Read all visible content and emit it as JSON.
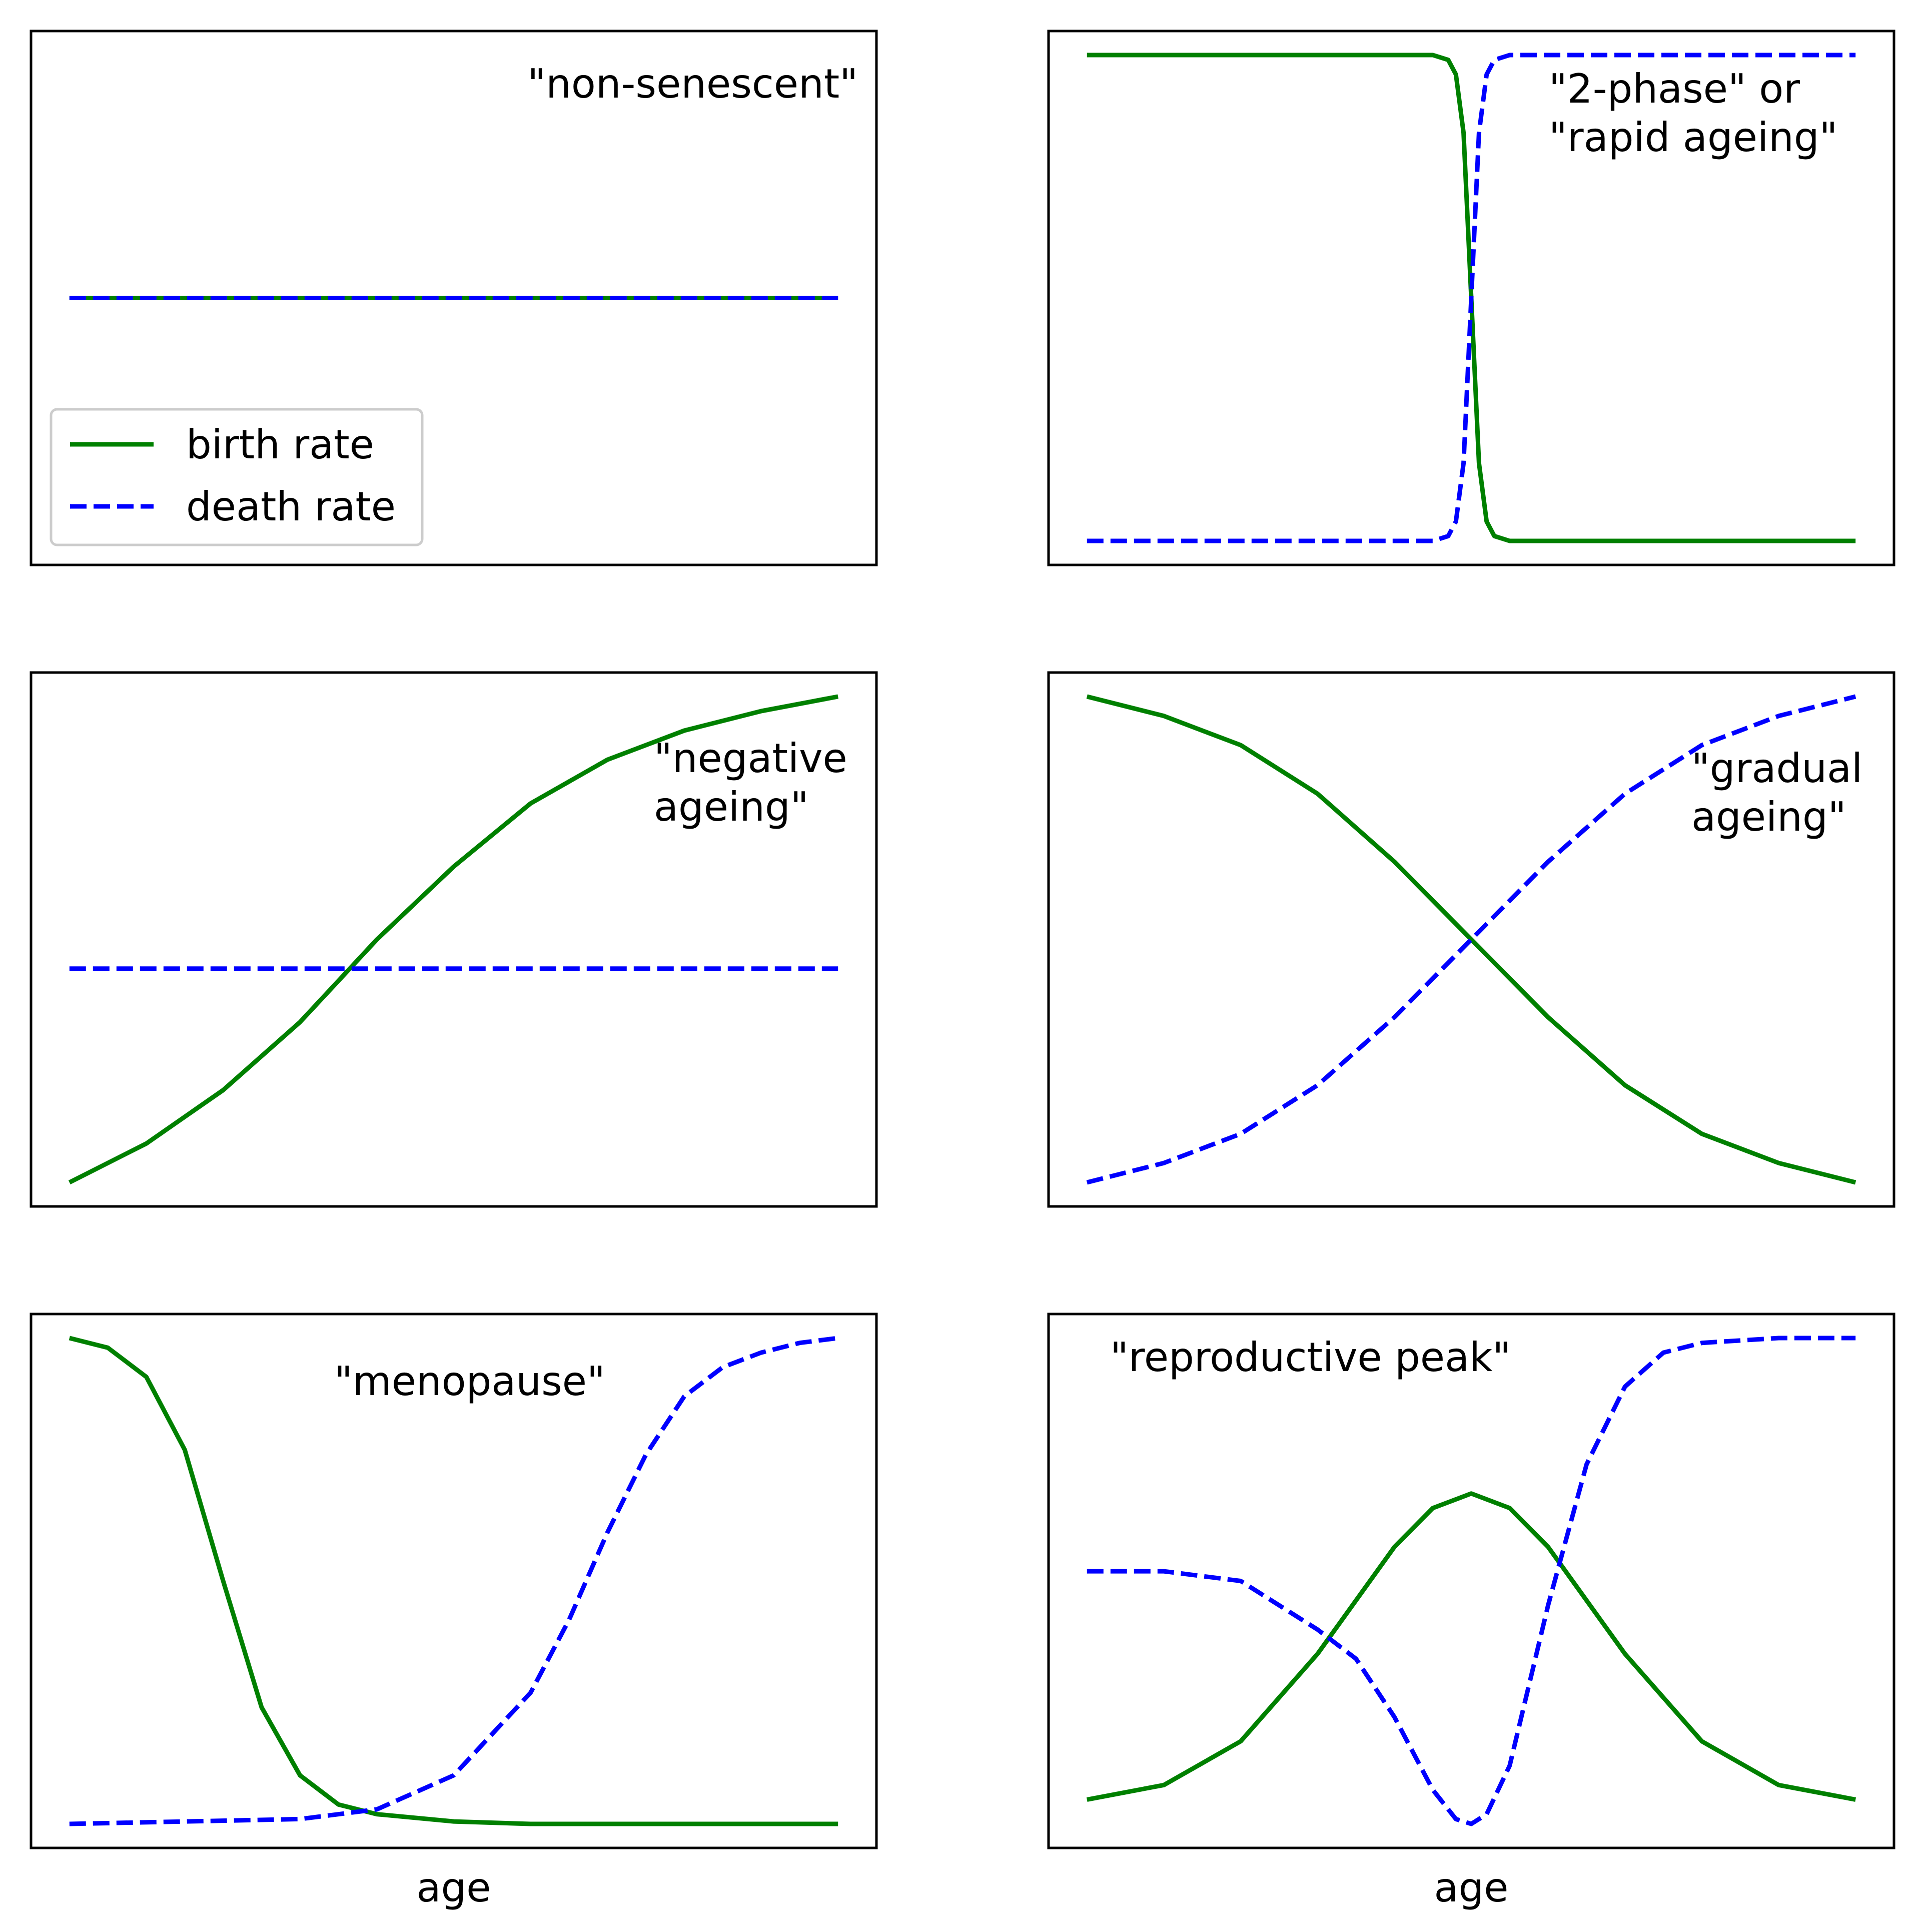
{
  "colors": {
    "birth": "#008000",
    "death": "#0000ff",
    "frame": "#000000",
    "legend_border": "#cccccc"
  },
  "legend": {
    "entries": [
      {
        "label": "birth rate",
        "series": "birth",
        "style": "solid"
      },
      {
        "label": "death rate",
        "series": "death",
        "style": "dashed"
      }
    ]
  },
  "chart_data": [
    {
      "type": "line",
      "annotation": [
        "\"non-senescent\""
      ],
      "xlabel": "",
      "ylim": [
        0,
        1
      ],
      "xlim": [
        -0.05,
        1.05
      ],
      "grid": false,
      "legend": "lower-left",
      "series": [
        {
          "name": "birth rate",
          "style": "solid",
          "x": [
            0,
            1
          ],
          "y": [
            0.5,
            0.5
          ]
        },
        {
          "name": "death rate",
          "style": "dashed",
          "x": [
            0,
            1
          ],
          "y": [
            0.5,
            0.5
          ]
        }
      ]
    },
    {
      "type": "line",
      "annotation": [
        "\"2-phase\" or",
        "\"rapid ageing\""
      ],
      "xlabel": "",
      "ylim": [
        0,
        1
      ],
      "xlim": [
        -0.05,
        1.05
      ],
      "grid": false,
      "series": [
        {
          "name": "birth rate",
          "style": "solid",
          "x": [
            0,
            0.3,
            0.45,
            0.47,
            0.48,
            0.49,
            0.5,
            0.51,
            0.52,
            0.53,
            0.55,
            0.7,
            1
          ],
          "y": [
            1,
            1,
            1,
            0.99,
            0.96,
            0.84,
            0.5,
            0.16,
            0.04,
            0.01,
            0,
            0,
            0
          ]
        },
        {
          "name": "death rate",
          "style": "dashed",
          "x": [
            0,
            0.3,
            0.45,
            0.47,
            0.48,
            0.49,
            0.5,
            0.51,
            0.52,
            0.53,
            0.55,
            0.7,
            1
          ],
          "y": [
            0,
            0,
            0,
            0.01,
            0.04,
            0.16,
            0.5,
            0.84,
            0.96,
            0.99,
            1,
            1,
            1
          ]
        }
      ]
    },
    {
      "type": "line",
      "annotation": [
        "\"negative",
        "ageing\""
      ],
      "xlabel": "",
      "ylim": [
        0,
        1
      ],
      "xlim": [
        -0.05,
        1.05
      ],
      "grid": false,
      "series": [
        {
          "name": "birth rate",
          "style": "solid",
          "x": [
            0,
            0.1,
            0.2,
            0.3,
            0.4,
            0.5,
            0.6,
            0.7,
            0.8,
            0.9,
            1
          ],
          "y": [
            0,
            0.08,
            0.19,
            0.33,
            0.5,
            0.65,
            0.78,
            0.87,
            0.93,
            0.97,
            1
          ]
        },
        {
          "name": "death rate",
          "style": "dashed",
          "x": [
            0,
            1
          ],
          "y": [
            0.44,
            0.44
          ]
        }
      ]
    },
    {
      "type": "line",
      "annotation": [
        "\"gradual",
        "ageing\""
      ],
      "xlabel": "",
      "ylim": [
        0,
        1
      ],
      "xlim": [
        -0.05,
        1.05
      ],
      "grid": false,
      "series": [
        {
          "name": "birth rate",
          "style": "solid",
          "x": [
            0,
            0.1,
            0.2,
            0.3,
            0.4,
            0.5,
            0.6,
            0.7,
            0.8,
            0.9,
            1
          ],
          "y": [
            1,
            0.96,
            0.9,
            0.8,
            0.66,
            0.5,
            0.34,
            0.2,
            0.1,
            0.04,
            0
          ]
        },
        {
          "name": "death rate",
          "style": "dashed",
          "x": [
            0,
            0.1,
            0.2,
            0.3,
            0.4,
            0.5,
            0.6,
            0.7,
            0.8,
            0.9,
            1
          ],
          "y": [
            0,
            0.04,
            0.1,
            0.2,
            0.34,
            0.5,
            0.66,
            0.8,
            0.9,
            0.96,
            1
          ]
        }
      ]
    },
    {
      "type": "line",
      "annotation": [
        "\"menopause\""
      ],
      "xlabel": "age",
      "ylim": [
        0,
        1
      ],
      "xlim": [
        -0.05,
        1.05
      ],
      "grid": false,
      "series": [
        {
          "name": "birth rate",
          "style": "solid",
          "x": [
            0,
            0.05,
            0.1,
            0.15,
            0.2,
            0.25,
            0.3,
            0.35,
            0.4,
            0.5,
            0.6,
            0.8,
            1
          ],
          "y": [
            1,
            0.98,
            0.92,
            0.77,
            0.5,
            0.24,
            0.1,
            0.04,
            0.02,
            0.005,
            0,
            0,
            0
          ]
        },
        {
          "name": "death rate",
          "style": "dashed",
          "x": [
            0,
            0.3,
            0.4,
            0.5,
            0.6,
            0.65,
            0.7,
            0.75,
            0.8,
            0.85,
            0.9,
            0.95,
            1
          ],
          "y": [
            0,
            0.01,
            0.03,
            0.1,
            0.27,
            0.42,
            0.6,
            0.76,
            0.88,
            0.94,
            0.97,
            0.99,
            1
          ]
        }
      ]
    },
    {
      "type": "line",
      "annotation": [
        "\"reproductive peak\""
      ],
      "xlabel": "age",
      "ylim": [
        0,
        1
      ],
      "xlim": [
        -0.05,
        1.05
      ],
      "grid": false,
      "series": [
        {
          "name": "birth rate",
          "style": "solid",
          "x": [
            0,
            0.1,
            0.2,
            0.3,
            0.4,
            0.45,
            0.5,
            0.55,
            0.6,
            0.7,
            0.8,
            0.9,
            1
          ],
          "y": [
            0.05,
            0.08,
            0.17,
            0.35,
            0.57,
            0.65,
            0.68,
            0.65,
            0.57,
            0.35,
            0.17,
            0.08,
            0.05
          ]
        },
        {
          "name": "death rate",
          "style": "dashed",
          "x": [
            0,
            0.1,
            0.2,
            0.25,
            0.3,
            0.35,
            0.4,
            0.45,
            0.48,
            0.5,
            0.52,
            0.55,
            0.6,
            0.65,
            0.7,
            0.75,
            0.8,
            0.9,
            1
          ],
          "y": [
            0.52,
            0.52,
            0.5,
            0.45,
            0.4,
            0.34,
            0.22,
            0.07,
            0.01,
            0,
            0.02,
            0.12,
            0.45,
            0.74,
            0.9,
            0.97,
            0.99,
            1,
            1
          ]
        }
      ]
    }
  ]
}
